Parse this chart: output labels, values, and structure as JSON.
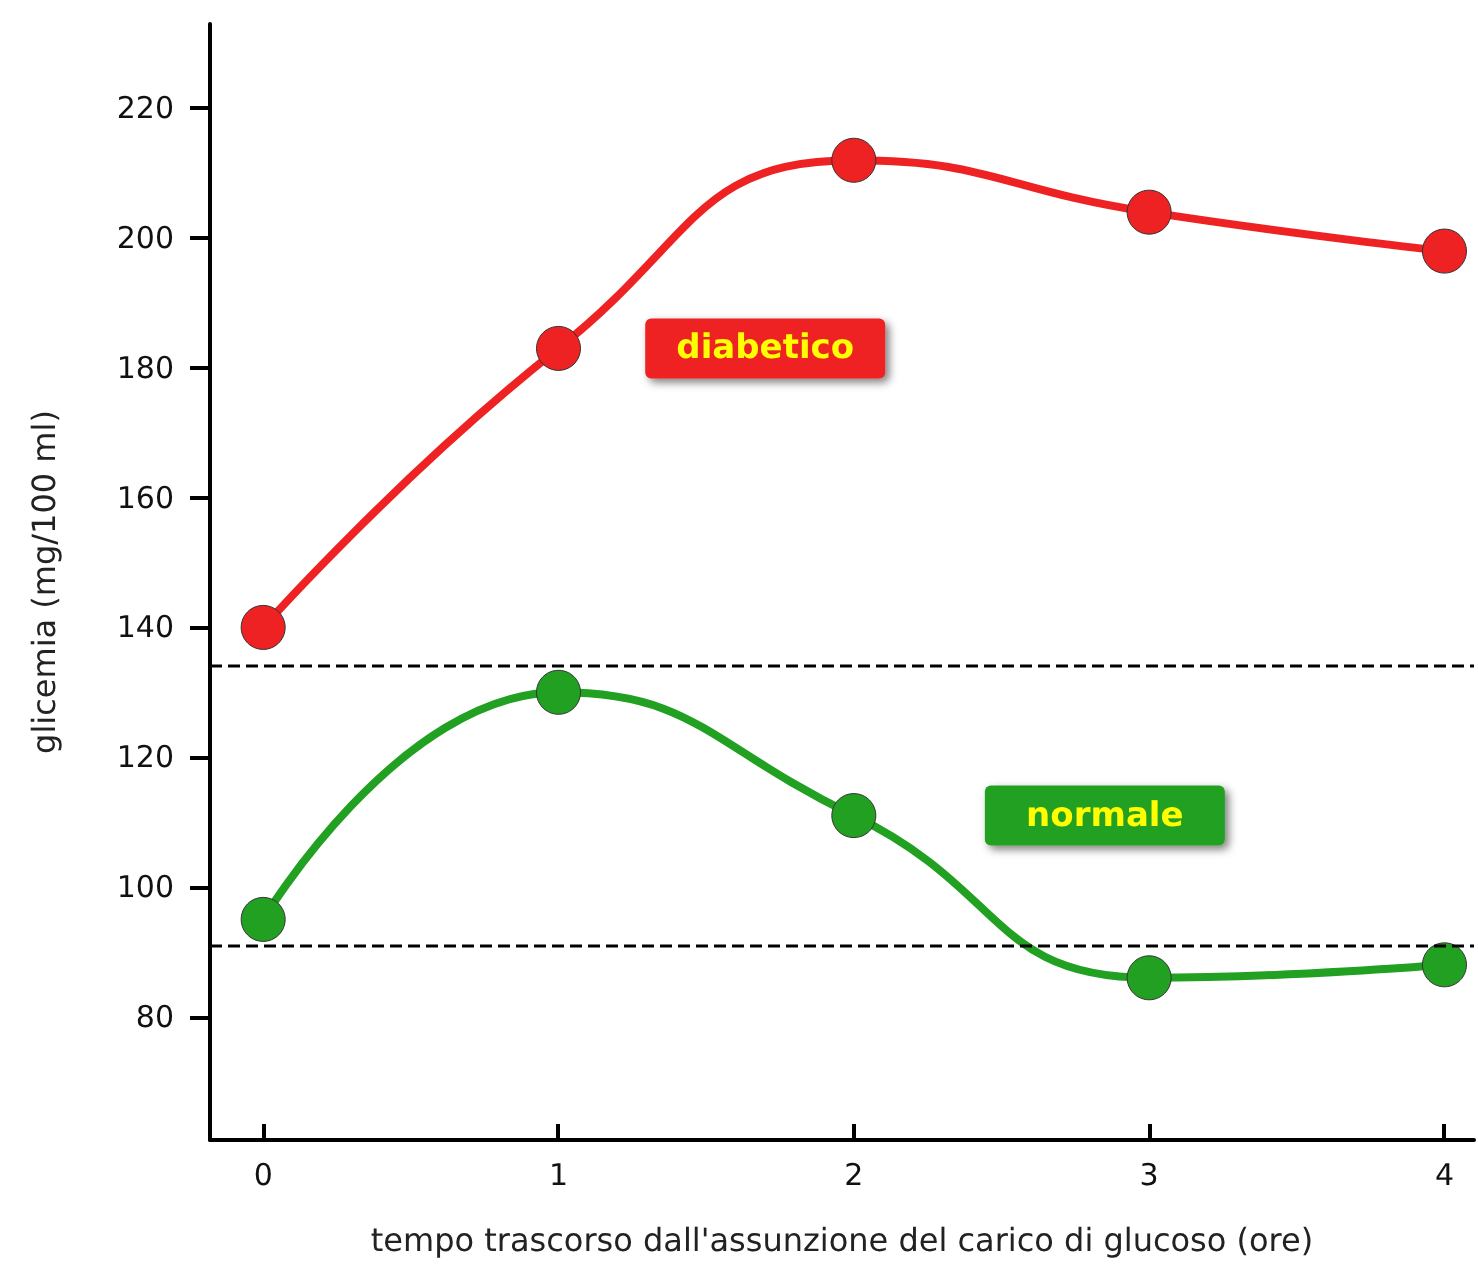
{
  "chart_data": {
    "type": "line",
    "xlabel": "tempo trascorso dall'assunzione del carico di glucoso (ore)",
    "ylabel": "glicemia (mg/100 ml)",
    "x": [
      0,
      1,
      2,
      3,
      4
    ],
    "series": [
      {
        "name": "diabetico",
        "color": "#ee2222",
        "values": [
          140,
          183,
          212,
          204,
          198
        ]
      },
      {
        "name": "normale",
        "color": "#22a022",
        "values": [
          95,
          130,
          111,
          86,
          88
        ]
      }
    ],
    "xlim": [
      -0.18,
      4.1
    ],
    "xticks": [
      0,
      1,
      2,
      3,
      4
    ],
    "ylim": [
      61,
      233
    ],
    "yticks": [
      80,
      100,
      120,
      140,
      160,
      180,
      200,
      220
    ],
    "ref_lines": [
      {
        "axis": "y",
        "value": 134,
        "line_style": "dashed",
        "color": "#000000"
      },
      {
        "axis": "y",
        "value": 91,
        "line_style": "dashed",
        "color": "#000000"
      }
    ],
    "grid": false,
    "legend": false,
    "marker": "circle",
    "line_style": "solid"
  }
}
